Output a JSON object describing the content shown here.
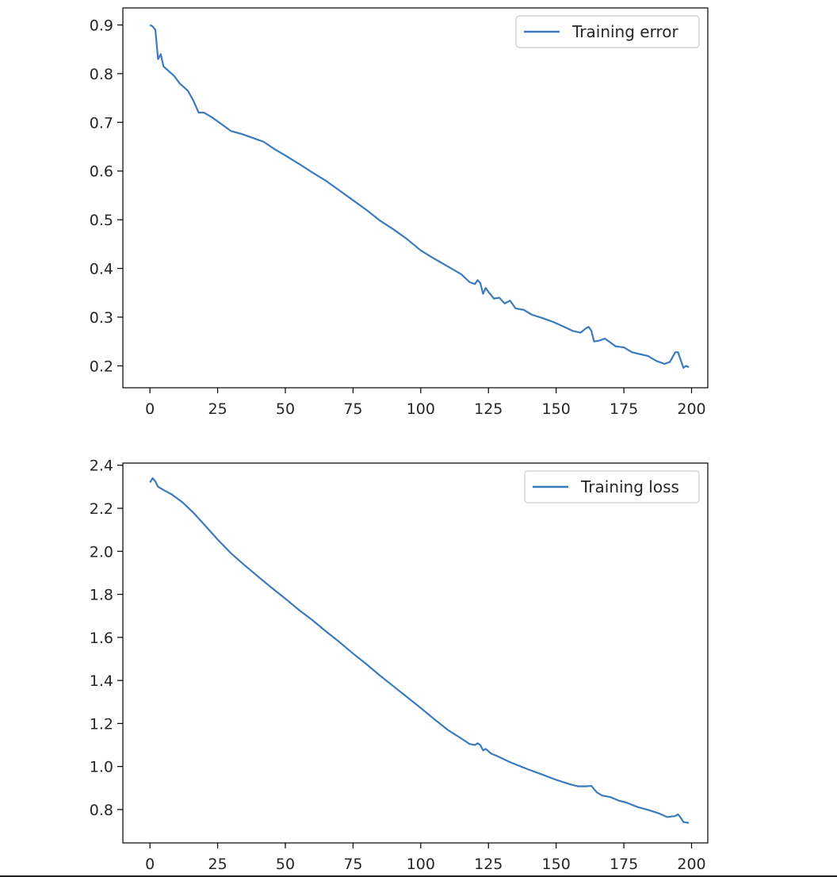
{
  "chart_data": [
    {
      "type": "line",
      "title": "",
      "xlabel": "",
      "ylabel": "",
      "xlim": [
        -10,
        206
      ],
      "ylim": [
        0.155,
        0.935
      ],
      "xticks": [
        0,
        25,
        50,
        75,
        100,
        125,
        150,
        175,
        200
      ],
      "yticks": [
        0.2,
        0.3,
        0.4,
        0.5,
        0.6,
        0.7,
        0.8,
        0.9
      ],
      "grid": false,
      "legend_position": "top-right",
      "series": [
        {
          "name": "Training error",
          "color": "#3b7bbd",
          "points": [
            [
              0,
              0.9
            ],
            [
              1,
              0.897
            ],
            [
              2,
              0.89
            ],
            [
              3,
              0.83
            ],
            [
              4,
              0.84
            ],
            [
              5,
              0.815
            ],
            [
              7,
              0.805
            ],
            [
              9,
              0.795
            ],
            [
              11,
              0.78
            ],
            [
              13,
              0.77
            ],
            [
              14,
              0.765
            ],
            [
              16,
              0.745
            ],
            [
              18,
              0.72
            ],
            [
              20,
              0.72
            ],
            [
              23,
              0.71
            ],
            [
              26,
              0.698
            ],
            [
              30,
              0.682
            ],
            [
              34,
              0.676
            ],
            [
              38,
              0.668
            ],
            [
              42,
              0.66
            ],
            [
              46,
              0.645
            ],
            [
              50,
              0.632
            ],
            [
              55,
              0.615
            ],
            [
              60,
              0.597
            ],
            [
              65,
              0.58
            ],
            [
              70,
              0.56
            ],
            [
              75,
              0.54
            ],
            [
              80,
              0.52
            ],
            [
              85,
              0.498
            ],
            [
              90,
              0.48
            ],
            [
              95,
              0.46
            ],
            [
              100,
              0.437
            ],
            [
              105,
              0.42
            ],
            [
              110,
              0.404
            ],
            [
              115,
              0.388
            ],
            [
              118,
              0.372
            ],
            [
              120,
              0.368
            ],
            [
              121,
              0.376
            ],
            [
              122,
              0.37
            ],
            [
              123,
              0.348
            ],
            [
              124,
              0.36
            ],
            [
              125,
              0.352
            ],
            [
              127,
              0.338
            ],
            [
              129,
              0.34
            ],
            [
              131,
              0.328
            ],
            [
              133,
              0.334
            ],
            [
              135,
              0.318
            ],
            [
              138,
              0.315
            ],
            [
              141,
              0.305
            ],
            [
              145,
              0.298
            ],
            [
              149,
              0.29
            ],
            [
              153,
              0.28
            ],
            [
              156,
              0.272
            ],
            [
              159,
              0.268
            ],
            [
              161,
              0.277
            ],
            [
              162,
              0.28
            ],
            [
              163,
              0.272
            ],
            [
              164,
              0.25
            ],
            [
              166,
              0.252
            ],
            [
              168,
              0.256
            ],
            [
              170,
              0.248
            ],
            [
              172,
              0.24
            ],
            [
              175,
              0.238
            ],
            [
              178,
              0.228
            ],
            [
              181,
              0.224
            ],
            [
              184,
              0.22
            ],
            [
              187,
              0.21
            ],
            [
              190,
              0.204
            ],
            [
              192,
              0.208
            ],
            [
              193,
              0.218
            ],
            [
              194,
              0.228
            ],
            [
              195,
              0.228
            ],
            [
              196,
              0.212
            ],
            [
              197,
              0.196
            ],
            [
              198,
              0.2
            ],
            [
              199,
              0.197
            ]
          ]
        }
      ]
    },
    {
      "type": "line",
      "title": "",
      "xlabel": "",
      "ylabel": "",
      "xlim": [
        -10,
        206
      ],
      "ylim": [
        0.645,
        2.41
      ],
      "xticks": [
        0,
        25,
        50,
        75,
        100,
        125,
        150,
        175,
        200
      ],
      "yticks": [
        0.8,
        1.0,
        1.2,
        1.4,
        1.6,
        1.8,
        2.0,
        2.2,
        2.4
      ],
      "grid": false,
      "legend_position": "top-right",
      "series": [
        {
          "name": "Training loss",
          "color": "#3b7bbd",
          "points": [
            [
              0,
              2.32
            ],
            [
              1,
              2.34
            ],
            [
              2,
              2.325
            ],
            [
              3,
              2.3
            ],
            [
              5,
              2.285
            ],
            [
              8,
              2.265
            ],
            [
              12,
              2.228
            ],
            [
              16,
              2.18
            ],
            [
              20,
              2.125
            ],
            [
              25,
              2.055
            ],
            [
              30,
              1.99
            ],
            [
              35,
              1.935
            ],
            [
              40,
              1.882
            ],
            [
              45,
              1.83
            ],
            [
              50,
              1.78
            ],
            [
              55,
              1.728
            ],
            [
              60,
              1.68
            ],
            [
              65,
              1.628
            ],
            [
              70,
              1.578
            ],
            [
              75,
              1.525
            ],
            [
              80,
              1.475
            ],
            [
              85,
              1.422
            ],
            [
              90,
              1.372
            ],
            [
              95,
              1.322
            ],
            [
              100,
              1.272
            ],
            [
              105,
              1.22
            ],
            [
              110,
              1.17
            ],
            [
              115,
              1.13
            ],
            [
              118,
              1.105
            ],
            [
              120,
              1.1
            ],
            [
              121,
              1.108
            ],
            [
              122,
              1.1
            ],
            [
              123,
              1.075
            ],
            [
              124,
              1.082
            ],
            [
              126,
              1.06
            ],
            [
              128,
              1.05
            ],
            [
              130,
              1.038
            ],
            [
              133,
              1.02
            ],
            [
              136,
              1.005
            ],
            [
              140,
              0.985
            ],
            [
              145,
              0.962
            ],
            [
              150,
              0.938
            ],
            [
              155,
              0.918
            ],
            [
              158,
              0.908
            ],
            [
              161,
              0.908
            ],
            [
              163,
              0.91
            ],
            [
              165,
              0.88
            ],
            [
              167,
              0.865
            ],
            [
              170,
              0.858
            ],
            [
              173,
              0.842
            ],
            [
              176,
              0.832
            ],
            [
              180,
              0.812
            ],
            [
              184,
              0.798
            ],
            [
              188,
              0.782
            ],
            [
              191,
              0.765
            ],
            [
              194,
              0.77
            ],
            [
              195,
              0.778
            ],
            [
              196,
              0.762
            ],
            [
              197,
              0.742
            ],
            [
              199,
              0.738
            ]
          ]
        }
      ]
    }
  ]
}
